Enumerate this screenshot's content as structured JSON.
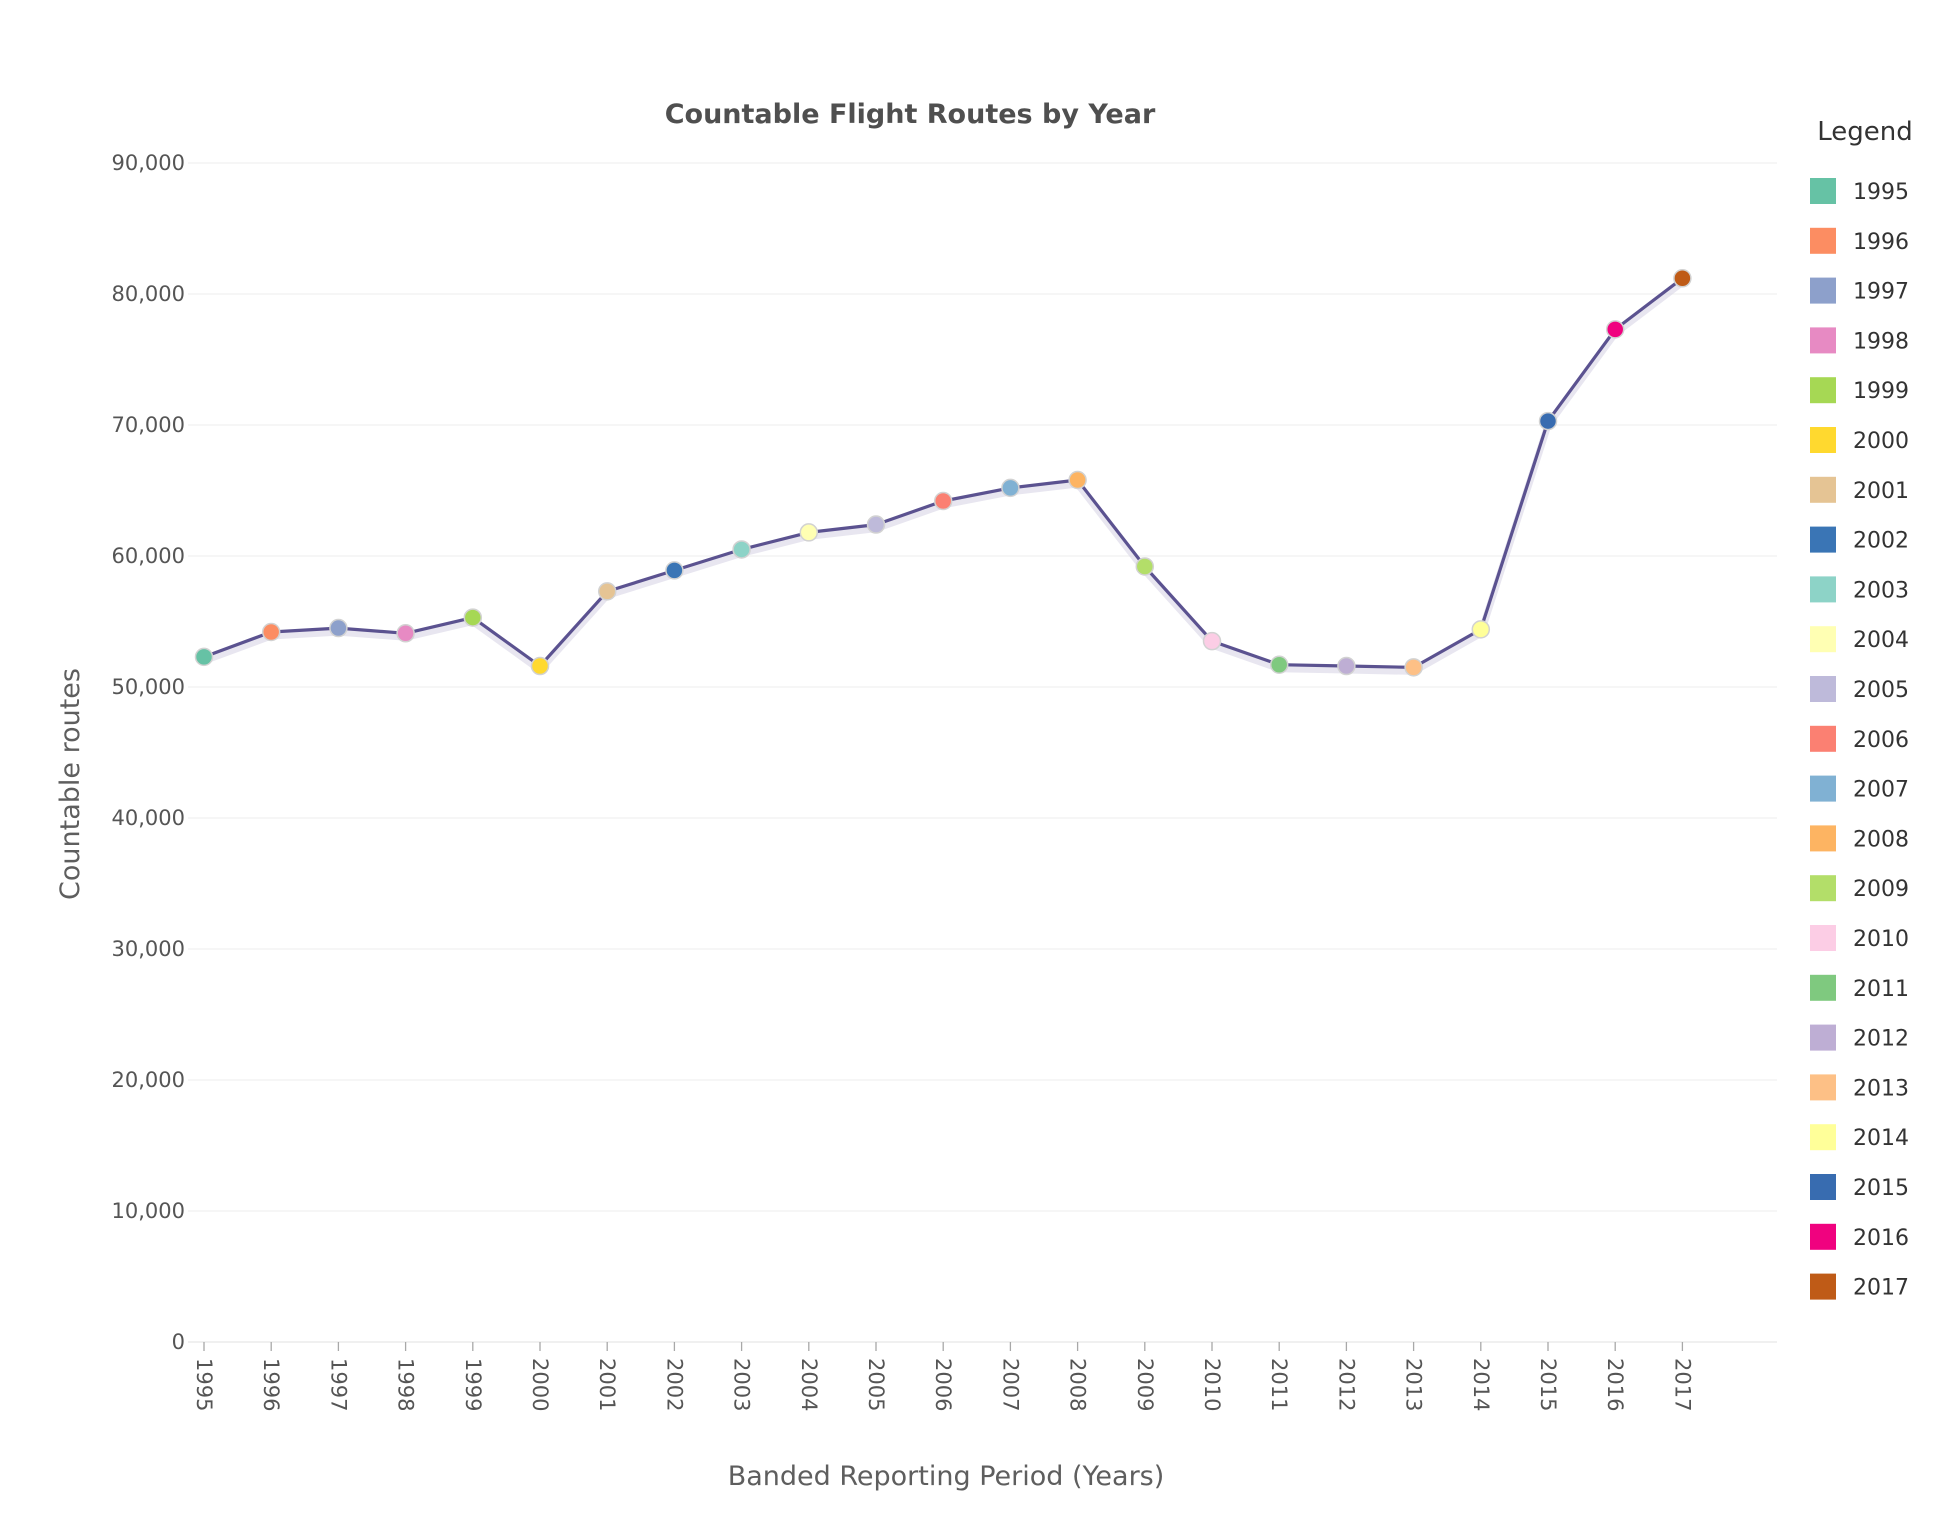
{
  "chart_data": {
    "type": "line",
    "title": "Countable Flight Routes by Year",
    "xlabel": "Banded Reporting Period (Years)",
    "ylabel": "Countable routes",
    "ylim": [
      0,
      90000
    ],
    "yticks": [
      0,
      10000,
      20000,
      30000,
      40000,
      50000,
      60000,
      70000,
      80000,
      90000
    ],
    "ytick_labels": [
      "0",
      "10,000",
      "20,000",
      "30,000",
      "40,000",
      "50,000",
      "60,000",
      "70,000",
      "80,000",
      "90,000"
    ],
    "grid": true,
    "legend_position": "right",
    "legend_title": "Legend",
    "line_color": "#5b5290",
    "categories": [
      "1995",
      "1996",
      "1997",
      "1998",
      "1999",
      "2000",
      "2001",
      "2002",
      "2003",
      "2004",
      "2005",
      "2006",
      "2007",
      "2008",
      "2009",
      "2010",
      "2011",
      "2012",
      "2013",
      "2014",
      "2015",
      "2016",
      "2017"
    ],
    "series": [
      {
        "values": [
          52300,
          54200,
          54500,
          54100,
          55300,
          51600,
          57300,
          58900,
          60500,
          61800,
          62400,
          64200,
          65200,
          65800,
          59200,
          53500,
          51700,
          51600,
          51500,
          54400,
          70300,
          77300,
          81200
        ]
      }
    ],
    "point_colors": [
      "#66c2a5",
      "#fc8d62",
      "#8da0cb",
      "#e78ac3",
      "#a6d854",
      "#ffd92f",
      "#e5c494",
      "#3a75b5",
      "#8dd3c7",
      "#ffffb3",
      "#bebada",
      "#fb8072",
      "#80b1d3",
      "#fdb462",
      "#b3de69",
      "#fccde5",
      "#7fc97f",
      "#beaed4",
      "#fdc086",
      "#ffff99",
      "#386cb0",
      "#f0027f",
      "#bf5b17"
    ]
  }
}
